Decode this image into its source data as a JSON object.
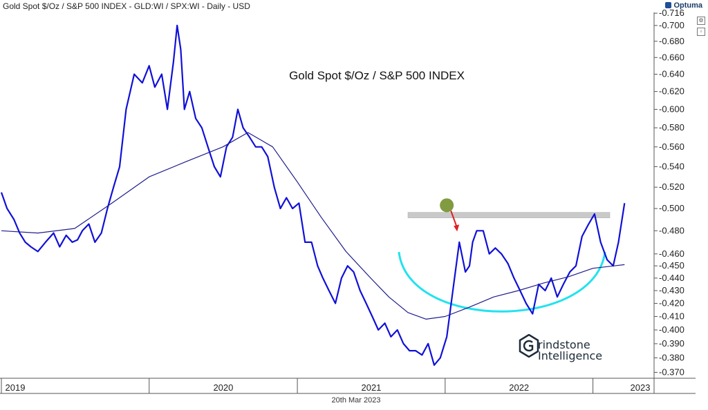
{
  "header": {
    "title": "Gold Spot $/Oz / S&P 500 INDEX - GLD:WI / SPX:WI - Daily - USD"
  },
  "brand": {
    "name": "Optuma"
  },
  "footer": {
    "date": "20th Mar 2023"
  },
  "watermark": {
    "line1": "rindstone",
    "line2": "Intelligence"
  },
  "colors": {
    "price": "#1010d8",
    "ma": "#1c1c8c",
    "arc": "#22e2ee",
    "resistance": "#c9c9c9",
    "peak_marker": "#6b8a20",
    "arrow": "#e02020",
    "grid": "#dcdcdc"
  },
  "chart_data": {
    "type": "line",
    "title": "Gold Spot $/Oz / S&P 500 INDEX",
    "xlabel": "",
    "ylabel": "",
    "scale": "log",
    "xlim": [
      "2019-01-01",
      "2023-06-01"
    ],
    "ylim": [
      0.366,
      0.717
    ],
    "grid": false,
    "x_tick_labels": [
      "2019",
      "2020",
      "2021",
      "2022",
      "2023"
    ],
    "y_tick_labels": [
      "0.716",
      "0.700",
      "0.680",
      "0.660",
      "0.640",
      "0.620",
      "0.600",
      "0.580",
      "0.560",
      "0.540",
      "0.520",
      "0.500",
      "0.480",
      "0.460",
      "0.450",
      "0.440",
      "0.430",
      "0.420",
      "0.410",
      "0.400",
      "0.390",
      "0.380",
      "0.370"
    ],
    "series": [
      {
        "role": "price",
        "x": [
          "2019-01-01",
          "2019-01-15",
          "2019-02-01",
          "2019-02-15",
          "2019-03-01",
          "2019-03-15",
          "2019-04-01",
          "2019-04-20",
          "2019-05-10",
          "2019-05-25",
          "2019-06-10",
          "2019-06-25",
          "2019-07-08",
          "2019-07-20",
          "2019-08-05",
          "2019-08-20",
          "2019-09-05",
          "2019-09-20",
          "2019-10-05",
          "2019-10-20",
          "2019-11-05",
          "2019-11-25",
          "2019-12-15",
          "2020-01-01",
          "2020-01-15",
          "2020-02-01",
          "2020-02-15",
          "2020-03-01",
          "2020-03-10",
          "2020-03-19",
          "2020-03-28",
          "2020-04-10",
          "2020-04-25",
          "2020-05-10",
          "2020-05-25",
          "2020-06-10",
          "2020-06-25",
          "2020-07-10",
          "2020-07-25",
          "2020-08-07",
          "2020-08-20",
          "2020-09-05",
          "2020-09-20",
          "2020-10-05",
          "2020-10-20",
          "2020-11-05",
          "2020-11-20",
          "2020-12-05",
          "2020-12-20",
          "2021-01-05",
          "2021-01-20",
          "2021-02-05",
          "2021-02-20",
          "2021-03-05",
          "2021-03-20",
          "2021-04-05",
          "2021-04-20",
          "2021-05-05",
          "2021-05-20",
          "2021-06-05",
          "2021-06-20",
          "2021-07-05",
          "2021-07-20",
          "2021-08-05",
          "2021-08-20",
          "2021-09-05",
          "2021-09-20",
          "2021-10-05",
          "2021-10-20",
          "2021-11-05",
          "2021-11-20",
          "2021-12-05",
          "2021-12-20",
          "2022-01-05",
          "2022-01-20",
          "2022-02-05",
          "2022-02-20",
          "2022-03-02",
          "2022-03-10",
          "2022-03-20",
          "2022-04-05",
          "2022-04-20",
          "2022-05-05",
          "2022-05-20",
          "2022-06-05",
          "2022-06-20",
          "2022-07-05",
          "2022-07-20",
          "2022-08-05",
          "2022-08-20",
          "2022-09-05",
          "2022-09-20",
          "2022-10-05",
          "2022-10-20",
          "2022-11-05",
          "2022-11-20",
          "2022-12-05",
          "2022-12-20",
          "2023-01-05",
          "2023-01-20",
          "2023-02-05",
          "2023-02-20",
          "2023-03-05",
          "2023-03-20"
        ],
        "y": [
          0.515,
          0.5,
          0.49,
          0.478,
          0.47,
          0.466,
          0.462,
          0.47,
          0.478,
          0.466,
          0.476,
          0.47,
          0.472,
          0.48,
          0.486,
          0.47,
          0.478,
          0.5,
          0.52,
          0.54,
          0.6,
          0.64,
          0.63,
          0.65,
          0.625,
          0.64,
          0.6,
          0.655,
          0.7,
          0.67,
          0.6,
          0.62,
          0.59,
          0.58,
          0.56,
          0.54,
          0.53,
          0.56,
          0.57,
          0.6,
          0.58,
          0.57,
          0.56,
          0.56,
          0.55,
          0.52,
          0.5,
          0.51,
          0.5,
          0.505,
          0.47,
          0.47,
          0.45,
          0.44,
          0.43,
          0.42,
          0.44,
          0.45,
          0.445,
          0.43,
          0.42,
          0.41,
          0.4,
          0.405,
          0.395,
          0.4,
          0.39,
          0.385,
          0.385,
          0.382,
          0.39,
          0.375,
          0.38,
          0.395,
          0.43,
          0.47,
          0.445,
          0.45,
          0.47,
          0.48,
          0.48,
          0.46,
          0.465,
          0.46,
          0.452,
          0.44,
          0.43,
          0.42,
          0.412,
          0.435,
          0.43,
          0.44,
          0.425,
          0.435,
          0.445,
          0.45,
          0.475,
          0.485,
          0.495,
          0.47,
          0.455,
          0.45,
          0.47,
          0.505
        ]
      },
      {
        "role": "moving-average",
        "x": [
          "2019-01-01",
          "2019-04-01",
          "2019-07-01",
          "2019-10-01",
          "2020-01-01",
          "2020-04-01",
          "2020-07-01",
          "2020-09-01",
          "2020-11-01",
          "2021-01-01",
          "2021-03-01",
          "2021-05-01",
          "2021-07-01",
          "2021-08-15",
          "2021-10-01",
          "2021-11-15",
          "2022-01-01",
          "2022-03-01",
          "2022-05-01",
          "2022-07-01",
          "2022-09-01",
          "2022-11-01",
          "2023-01-01",
          "2023-03-20"
        ],
        "y": [
          0.48,
          0.478,
          0.482,
          0.505,
          0.53,
          0.545,
          0.56,
          0.575,
          0.56,
          0.525,
          0.492,
          0.462,
          0.44,
          0.425,
          0.413,
          0.408,
          0.41,
          0.417,
          0.425,
          0.43,
          0.436,
          0.441,
          0.448,
          0.451
        ]
      }
    ],
    "annotations": {
      "resistance_level": 0.494
    }
  }
}
